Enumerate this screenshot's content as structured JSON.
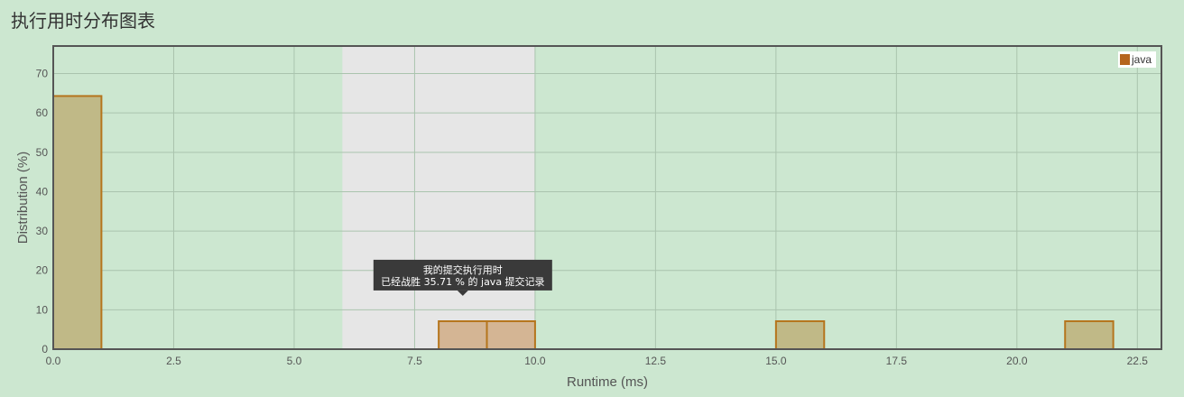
{
  "page": {
    "title": "执行用时分布图表"
  },
  "chart_data": {
    "type": "bar",
    "xlabel": "Runtime (ms)",
    "ylabel": "Distribution (%)",
    "xlim": [
      0,
      23
    ],
    "ylim": [
      0,
      77
    ],
    "xticks": [
      0,
      2.5,
      5,
      7.5,
      10,
      12.5,
      15,
      17.5,
      20,
      22.5
    ],
    "xtick_labels": [
      "0.0",
      "2.5",
      "5.0",
      "7.5",
      "10.0",
      "12.5",
      "15.0",
      "17.5",
      "20.0",
      "22.5"
    ],
    "yticks": [
      0,
      10,
      20,
      30,
      40,
      50,
      60,
      70
    ],
    "ytick_labels": [
      "0",
      "10",
      "20",
      "30",
      "40",
      "50",
      "60",
      "70"
    ],
    "grid": true,
    "legend": {
      "position": "top-right",
      "entries": [
        {
          "name": "java",
          "color": "#b5651d"
        }
      ]
    },
    "highlight_range": [
      6,
      10
    ],
    "series": [
      {
        "name": "java",
        "bins": [
          {
            "x0": 0,
            "x1": 1,
            "value": 64.3,
            "highlight": false
          },
          {
            "x0": 8,
            "x1": 9,
            "value": 7.1,
            "highlight": true
          },
          {
            "x0": 9,
            "x1": 10,
            "value": 7.1,
            "highlight": true
          },
          {
            "x0": 15,
            "x1": 16,
            "value": 7.1,
            "highlight": false
          },
          {
            "x0": 21,
            "x1": 22,
            "value": 7.1,
            "highlight": false
          }
        ]
      }
    ],
    "tooltip": {
      "line1": "我的提交执行用时",
      "line2": "已经战胜 35.71 % 的 java 提交记录",
      "anchor_x": 8.5,
      "anchor_y": 14
    },
    "colors": {
      "plot_bg": "#cce7d0",
      "highlight_bg": "#e6e6e6",
      "bar_fill": "#c0b987",
      "bar_fill_highlight": "#d4b594",
      "bar_stroke": "#b5751d",
      "grid": "#aac4ae",
      "frame": "#555555"
    }
  }
}
